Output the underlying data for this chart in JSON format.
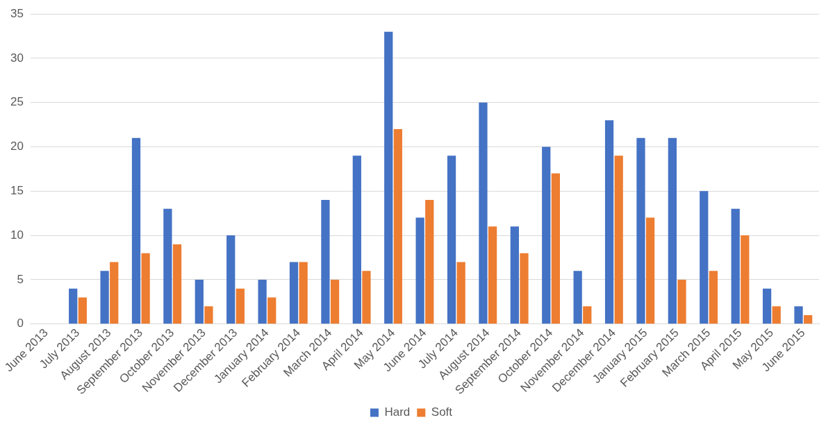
{
  "chart_data": {
    "type": "bar",
    "categories": [
      "June 2013",
      "July 2013",
      "August 2013",
      "September 2013",
      "October 2013",
      "November 2013",
      "December 2013",
      "January 2014",
      "February 2014",
      "March 2014",
      "April 2014",
      "May 2014",
      "June 2014",
      "July 2014",
      "August 2014",
      "September 2014",
      "October 2014",
      "November 2014",
      "December 2014",
      "January 2015",
      "February 2015",
      "March 2015",
      "April 2015",
      "May 2015",
      "June 2015"
    ],
    "series": [
      {
        "name": "Hard",
        "color": "#4472c4",
        "values": [
          0,
          4,
          6,
          21,
          13,
          5,
          10,
          5,
          7,
          14,
          19,
          33,
          12,
          19,
          25,
          11,
          20,
          6,
          23,
          21,
          21,
          15,
          13,
          4,
          2
        ]
      },
      {
        "name": "Soft",
        "color": "#ed7d31",
        "values": [
          0,
          3,
          7,
          8,
          9,
          2,
          4,
          3,
          7,
          5,
          6,
          22,
          14,
          7,
          11,
          8,
          17,
          2,
          19,
          12,
          5,
          6,
          10,
          2,
          1
        ]
      }
    ],
    "ylim": [
      0,
      35
    ],
    "yticks": [
      0,
      5,
      10,
      15,
      20,
      25,
      30,
      35
    ],
    "grid": "y",
    "legend": "bottom"
  }
}
